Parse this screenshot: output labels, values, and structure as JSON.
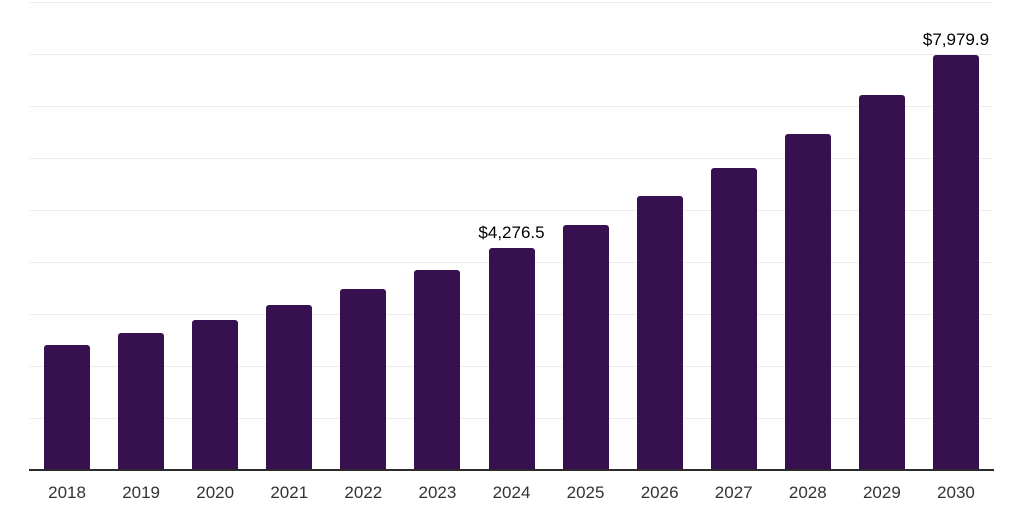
{
  "chart_data": {
    "type": "bar",
    "title": "",
    "xlabel": "",
    "ylabel": "",
    "categories": [
      "2018",
      "2019",
      "2020",
      "2021",
      "2022",
      "2023",
      "2024",
      "2025",
      "2026",
      "2027",
      "2028",
      "2029",
      "2030"
    ],
    "values": [
      2405,
      2637,
      2888,
      3177,
      3486,
      3852,
      4276.5,
      4720,
      5260,
      5800,
      6456,
      7208,
      7979.9
    ],
    "value_labels": [
      null,
      null,
      null,
      null,
      null,
      null,
      "$4,276.5",
      null,
      null,
      null,
      null,
      null,
      "$7,979.9"
    ],
    "ylim": [
      0,
      9000
    ],
    "gridline_step": 1000,
    "grid": "horizontal",
    "y_tick_labels_visible": false,
    "legend_position": "none",
    "colors": {
      "bar": "#37114f",
      "gridline": "#ececec",
      "axis_line": "#2b2b2b",
      "tick_label": "#333333",
      "value_label": "#000000",
      "background": "#ffffff"
    }
  }
}
